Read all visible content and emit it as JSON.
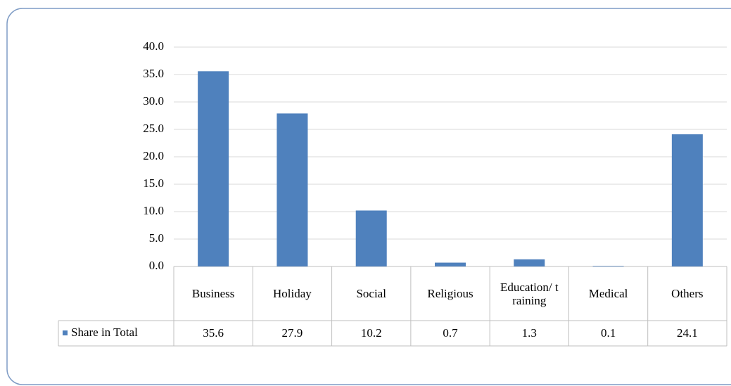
{
  "chart_data": {
    "type": "bar",
    "categories": [
      "Business",
      "Holiday",
      "Social",
      "Religious",
      "Education/ training",
      "Medical",
      "Others"
    ],
    "series": [
      {
        "name": "Share in Total",
        "color": "#4f81bd",
        "values": [
          35.6,
          27.9,
          10.2,
          0.7,
          1.3,
          0.1,
          24.1
        ]
      }
    ],
    "ylim": [
      0,
      40
    ],
    "yticks": [
      {
        "value": 0,
        "label": "0.0"
      },
      {
        "value": 5,
        "label": "5.0"
      },
      {
        "value": 10,
        "label": "10.0"
      },
      {
        "value": 15,
        "label": "15.0"
      },
      {
        "value": 20,
        "label": "20.0"
      },
      {
        "value": 25,
        "label": "25.0"
      },
      {
        "value": 30,
        "label": "30.0"
      },
      {
        "value": 35,
        "label": "35.0"
      },
      {
        "value": 40,
        "label": "40.0"
      }
    ],
    "grid": true,
    "data_table": true
  }
}
